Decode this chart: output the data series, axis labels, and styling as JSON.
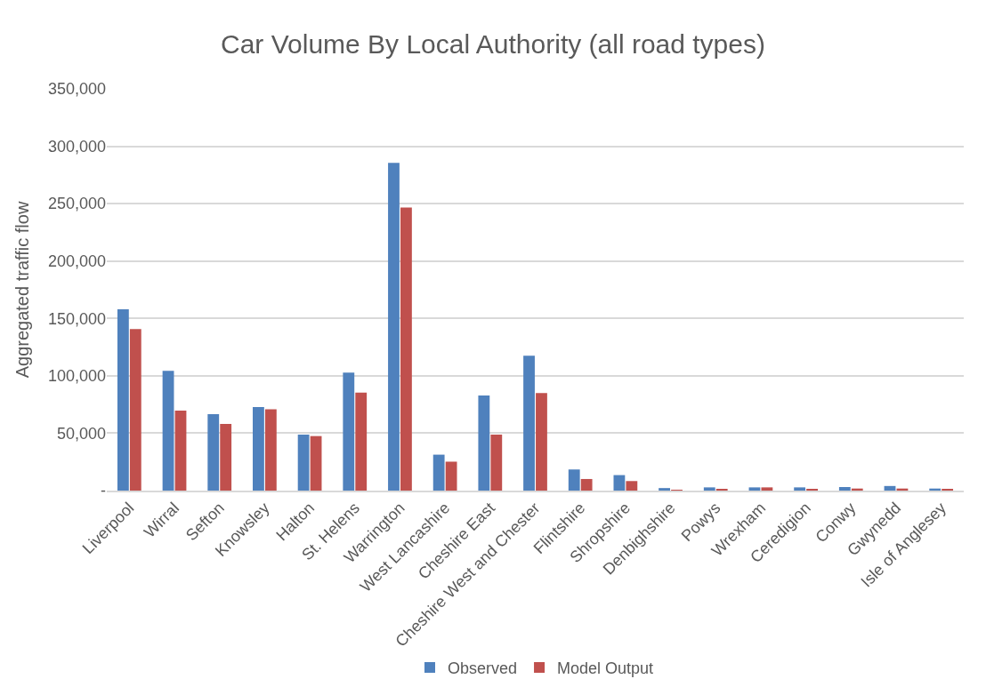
{
  "chart_data": {
    "type": "bar",
    "title": "Car Volume By Local Authority (all road types)",
    "ylabel": "Aggregated traffic flow",
    "categories": [
      "Liverpool",
      "Wirral",
      "Sefton",
      "Knowsley",
      "Halton",
      "St. Helens",
      "Warrington",
      "West Lancashire",
      "Cheshire East",
      "Cheshire West and Chester",
      "Flintshire",
      "Shropshire",
      "Denbighshire",
      "Powys",
      "Wrexham",
      "Ceredigion",
      "Conwy",
      "Gwynedd",
      "Isle of Anglesey"
    ],
    "series": [
      {
        "name": "Observed",
        "color": "#4f81bd",
        "values": [
          158000,
          104300,
          66600,
          72700,
          48800,
          102800,
          285600,
          31300,
          82800,
          117500,
          18400,
          13500,
          2200,
          2800,
          2800,
          2800,
          3100,
          4000,
          1800
        ]
      },
      {
        "name": "Model Output",
        "color": "#c0504d",
        "values": [
          140800,
          69600,
          58000,
          70900,
          47500,
          85300,
          246600,
          25200,
          48800,
          85000,
          10100,
          8300,
          600,
          1500,
          2800,
          900,
          1800,
          1800,
          900
        ]
      }
    ],
    "ylim": [
      0,
      350000
    ],
    "yticks": [
      {
        "value": 0,
        "label": "-"
      },
      {
        "value": 50000,
        "label": "50,000"
      },
      {
        "value": 100000,
        "label": "100,000"
      },
      {
        "value": 150000,
        "label": "150,000"
      },
      {
        "value": 200000,
        "label": "200,000"
      },
      {
        "value": 250000,
        "label": "250,000"
      },
      {
        "value": 300000,
        "label": "300,000"
      },
      {
        "value": 350000,
        "label": "350,000"
      }
    ],
    "grid": "y",
    "legend": "bottom"
  }
}
